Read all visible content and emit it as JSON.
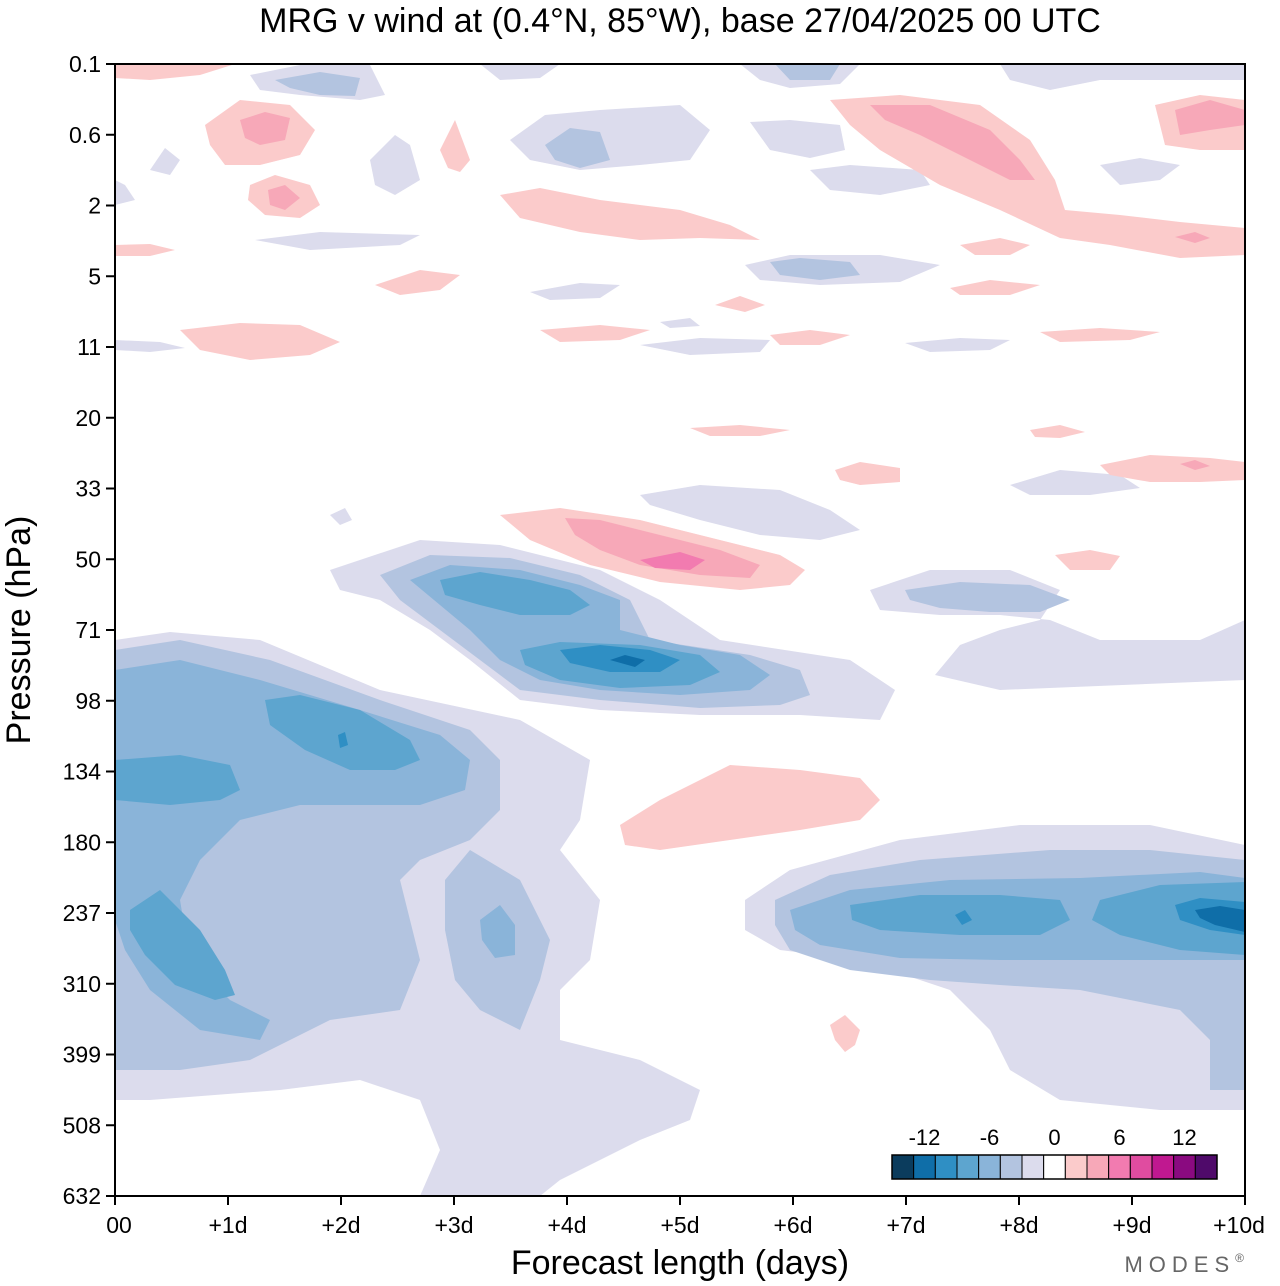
{
  "chart_data": {
    "type": "heatmap",
    "title": "MRG v wind at (0.4°N, 85°W),  base 27/04/2025  00 UTC",
    "xlabel": "Forecast length (days)",
    "ylabel": "Pressure (hPa)",
    "x_ticks": [
      "00",
      "+1d",
      "+2d",
      "+3d",
      "+4d",
      "+5d",
      "+6d",
      "+7d",
      "+8d",
      "+9d",
      "+10d"
    ],
    "xlim": [
      0,
      10
    ],
    "y_ticks": [
      "0.1",
      "0.6",
      "2",
      "5",
      "11",
      "20",
      "33",
      "50",
      "71",
      "98",
      "134",
      "180",
      "237",
      "310",
      "399",
      "508",
      "632"
    ],
    "y_scale": "pressure levels (log-like, top = 0.1 hPa)",
    "colorbar": {
      "labels": [
        "-12",
        "-6",
        "0",
        "6",
        "12"
      ],
      "levels": [
        -14,
        -12,
        -10,
        -8,
        -6,
        -4,
        -2,
        2,
        4,
        6,
        8,
        10,
        12,
        14
      ],
      "colors": [
        "#0b3c5d",
        "#0f6ea8",
        "#2f8fc4",
        "#5da5cf",
        "#8ab4d9",
        "#b3c4e0",
        "#dcdced",
        "#ffffff",
        "#fbcbcb",
        "#f7a8b8",
        "#f27bb0",
        "#e04ca0",
        "#c01890",
        "#8a0a80",
        "#4f0a6a"
      ],
      "placement": "bottom-right"
    },
    "features": [
      {
        "sign": "negative",
        "x": 0.6,
        "pressure": 237,
        "peak": -10
      },
      {
        "sign": "negative",
        "x": 2.0,
        "pressure": 115,
        "peak": -10
      },
      {
        "sign": "negative",
        "x": 4.5,
        "pressure": 85,
        "peak": -12
      },
      {
        "sign": "negative",
        "x": 3.8,
        "pressure": 60,
        "peak": -10
      },
      {
        "sign": "negative",
        "x": 9.6,
        "pressure": 237,
        "peak": -12
      },
      {
        "sign": "negative",
        "x": 7.5,
        "pressure": 237,
        "peak": -10
      },
      {
        "sign": "positive",
        "x": 4.8,
        "pressure": 50,
        "peak": 8
      },
      {
        "sign": "positive",
        "x": 5.4,
        "pressure": 150,
        "peak": 2
      },
      {
        "sign": "positive",
        "x": 8.5,
        "pressure": 1.0,
        "peak": 6
      }
    ]
  },
  "brand": "MODES",
  "brand_mark": "®"
}
